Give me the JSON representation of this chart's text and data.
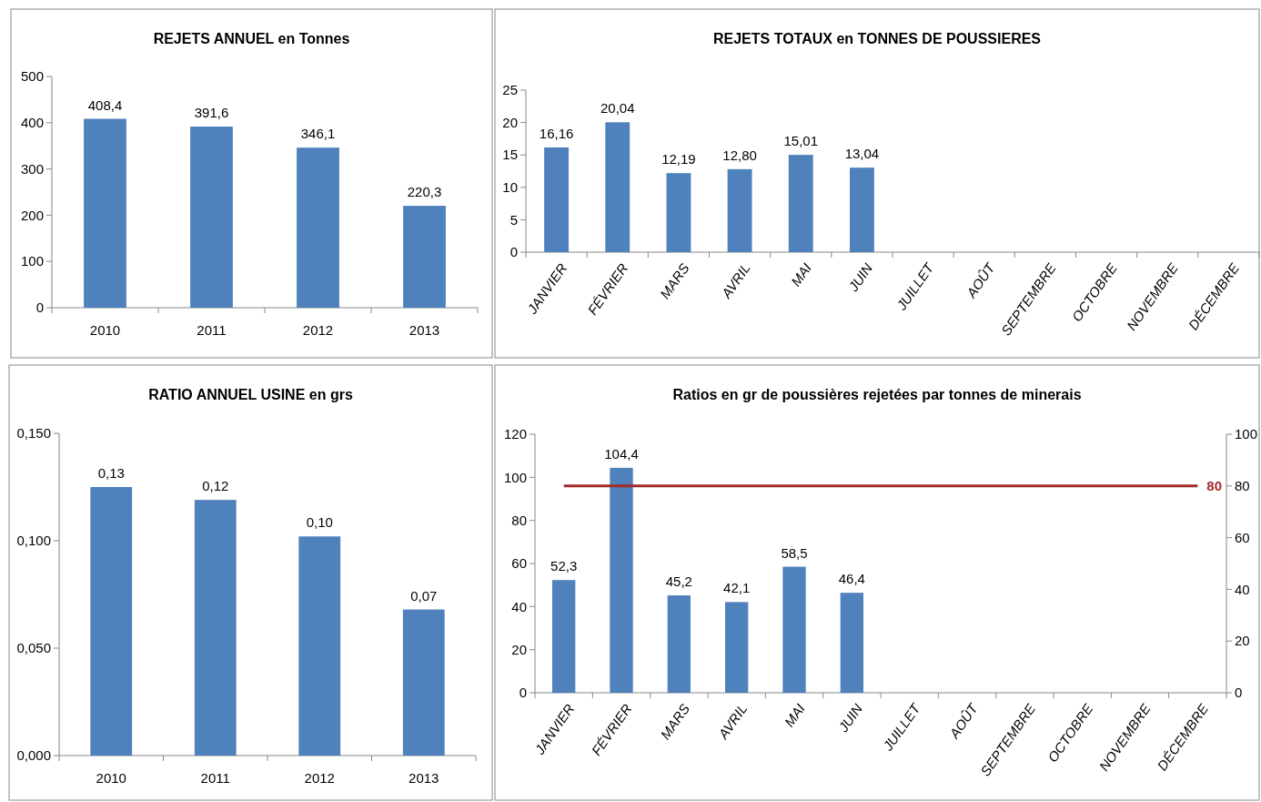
{
  "chart_data": [
    {
      "type": "bar",
      "title": "REJETS ANNUEL en Tonnes",
      "categories": [
        "2010",
        "2011",
        "2012",
        "2013"
      ],
      "series": [
        {
          "color": "#4f81bd",
          "values": [
            408.4,
            391.6,
            346.1,
            220.3
          ],
          "value_labels": [
            "408,4",
            "391,6",
            "346,1",
            "220,3"
          ]
        }
      ],
      "ylim": [
        0,
        500
      ],
      "yticks": [
        0,
        100,
        200,
        300,
        400,
        500
      ]
    },
    {
      "type": "bar",
      "title": "REJETS TOTAUX en TONNES DE POUSSIERES",
      "categories": [
        "JANVIER",
        "FÉVRIER",
        "MARS",
        "AVRIL",
        "MAI",
        "JUIN",
        "JUILLET",
        "AOÛT",
        "SEPTEMBRE",
        "OCTOBRE",
        "NOVEMBRE",
        "DÉCEMBRE"
      ],
      "series": [
        {
          "color": "#4f81bd",
          "values": [
            16.16,
            20.04,
            12.19,
            12.8,
            15.01,
            13.04,
            null,
            null,
            null,
            null,
            null,
            null
          ],
          "value_labels": [
            "16,16",
            "20,04",
            "12,19",
            "12,80",
            "15,01",
            "13,04",
            null,
            null,
            null,
            null,
            null,
            null
          ]
        }
      ],
      "ylim": [
        0,
        25
      ],
      "yticks": [
        0,
        5,
        10,
        15,
        20,
        25
      ]
    },
    {
      "type": "bar",
      "title": "RATIO ANNUEL USINE en grs",
      "categories": [
        "2010",
        "2011",
        "2012",
        "2013"
      ],
      "series": [
        {
          "color": "#4f81bd",
          "values": [
            0.125,
            0.119,
            0.102,
            0.068
          ],
          "value_labels": [
            "0,13",
            "0,12",
            "0,10",
            "0,07"
          ]
        }
      ],
      "ylim": [
        0,
        0.15
      ],
      "yticks": [
        {
          "value": 0,
          "label": "0,000"
        },
        {
          "value": 0.05,
          "label": "0,050"
        },
        {
          "value": 0.1,
          "label": "0,100"
        },
        {
          "value": 0.15,
          "label": "0,150"
        }
      ]
    },
    {
      "type": "bar",
      "title": "Ratios  en gr de poussières rejetées par tonnes de minerais",
      "categories": [
        "JANVIER",
        "FÉVRIER",
        "MARS",
        "AVRIL",
        "MAI",
        "JUIN",
        "JUILLET",
        "AOÛT",
        "SEPTEMBRE",
        "OCTOBRE",
        "NOVEMBRE",
        "DÉCEMBRE"
      ],
      "series": [
        {
          "color": "#4f81bd",
          "values": [
            52.3,
            104.4,
            45.2,
            42.1,
            58.5,
            46.4,
            null,
            null,
            null,
            null,
            null,
            null
          ],
          "value_labels": [
            "52,3",
            "104,4",
            "45,2",
            "42,1",
            "58,5",
            "46,4",
            null,
            null,
            null,
            null,
            null,
            null
          ]
        }
      ],
      "ylim": [
        0,
        120
      ],
      "yticks": [
        0,
        20,
        40,
        60,
        80,
        100,
        120
      ],
      "y2lim": [
        0,
        100
      ],
      "y2ticks": [
        0,
        20,
        40,
        60,
        80,
        100
      ],
      "ref_lines": [
        {
          "axis": "y2",
          "value": 80,
          "label": "80",
          "color": "#a52a2a"
        }
      ]
    }
  ]
}
